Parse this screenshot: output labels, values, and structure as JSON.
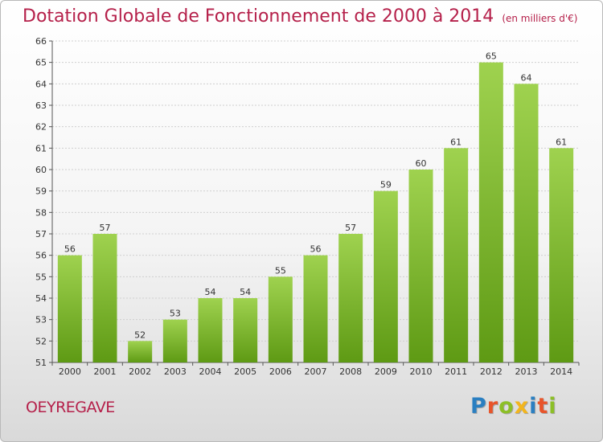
{
  "header": {
    "title": "Dotation Globale de Fonctionnement de 2000 à 2014",
    "subtitle": "(en milliers d'€)"
  },
  "footer": {
    "town": "OEYREGAVE",
    "logo": "Proxiti",
    "logo_colors": [
      "#2a7fc1",
      "#e8552b",
      "#8cbf26",
      "#f2b51d",
      "#2a7fc1",
      "#e8552b",
      "#8cbf26"
    ]
  },
  "chart_data": {
    "type": "bar",
    "categories": [
      "2000",
      "2001",
      "2002",
      "2003",
      "2004",
      "2005",
      "2006",
      "2007",
      "2008",
      "2009",
      "2010",
      "2011",
      "2012",
      "2013",
      "2014"
    ],
    "values": [
      56,
      57,
      52,
      53,
      54,
      54,
      55,
      56,
      57,
      59,
      60,
      61,
      65,
      64,
      61
    ],
    "ylim": [
      51,
      66
    ],
    "yticks": [
      51,
      52,
      53,
      54,
      55,
      56,
      57,
      58,
      59,
      60,
      61,
      62,
      63,
      64,
      65,
      66
    ],
    "grid": true,
    "bar_color_top": "#9fd24f",
    "bar_color_bottom": "#5e9a14",
    "title_color": "#b5204a"
  }
}
